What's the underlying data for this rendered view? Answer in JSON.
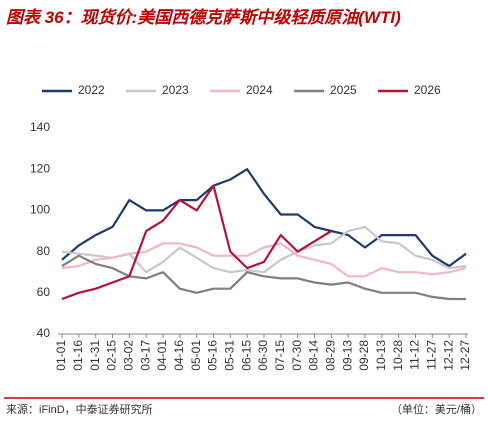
{
  "chart_data": {
    "type": "line",
    "title": "图表 36：现货价:美国西德克萨斯中级轻质原油(WTI)",
    "source": "来源：iFinD，中泰证券研究所",
    "unit": "（单位：美元/桶）",
    "categories": [
      "01-01",
      "01-16",
      "01-31",
      "02-15",
      "03-02",
      "03-17",
      "04-01",
      "04-16",
      "05-01",
      "05-16",
      "05-31",
      "06-15",
      "06-30",
      "07-15",
      "07-30",
      "08-14",
      "08-29",
      "09-13",
      "09-28",
      "10-13",
      "10-28",
      "11-12",
      "11-27",
      "12-12",
      "12-27"
    ],
    "series": [
      {
        "name": "2022",
        "color": "#1f3a6e",
        "values": [
          76,
          83,
          88,
          92,
          105,
          100,
          100,
          105,
          105,
          112,
          115,
          120,
          108,
          98,
          98,
          92,
          90,
          88,
          82,
          88,
          88,
          88,
          78,
          73,
          79
        ]
      },
      {
        "name": "2023",
        "color": "#c8c8c8",
        "values": [
          80,
          79,
          78,
          77,
          79,
          70,
          75,
          82,
          77,
          72,
          70,
          71,
          70,
          76,
          80,
          83,
          84,
          90,
          92,
          85,
          84,
          78,
          76,
          72,
          73
        ]
      },
      {
        "name": "2024",
        "color": "#f2b8c0",
        "values": [
          72,
          73,
          76,
          77,
          79,
          80,
          84,
          84,
          82,
          78,
          78,
          78,
          82,
          84,
          78,
          76,
          74,
          68,
          68,
          72,
          70,
          70,
          69,
          70,
          72
        ]
      },
      {
        "name": "2025",
        "color": "#7f7f7f",
        "values": [
          73,
          78,
          74,
          72,
          68,
          67,
          70,
          62,
          60,
          62,
          62,
          70,
          68,
          67,
          67,
          65,
          64,
          65,
          62,
          60,
          60,
          60,
          58,
          57,
          57
        ]
      },
      {
        "name": "2026",
        "color": "#b5123a",
        "values": [
          57,
          60,
          62,
          65,
          68,
          90,
          95,
          105,
          100,
          112,
          80,
          72,
          75,
          88,
          80,
          85,
          90,
          null,
          null,
          null,
          null,
          null,
          null,
          null,
          null
        ]
      }
    ],
    "ylim": [
      40,
      140
    ],
    "yticks": [
      40,
      60,
      80,
      100,
      120,
      140
    ],
    "grid": false
  }
}
